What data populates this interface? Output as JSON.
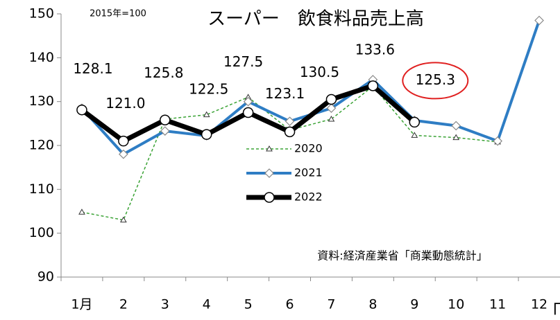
{
  "chart_data": {
    "type": "line",
    "title": "スーパー　飲食料品売上高",
    "subtitle": "2015年=100",
    "source": "資料:経済産業省「商業動態統計」",
    "corner_mark": "「",
    "categories": [
      "1月",
      "2",
      "3",
      "4",
      "5",
      "6",
      "7",
      "8",
      "9",
      "10",
      "11",
      "12"
    ],
    "ylim": [
      90,
      150
    ],
    "yticks": [
      90,
      100,
      110,
      120,
      130,
      140,
      150
    ],
    "legend": "center",
    "series": [
      {
        "name": "2020",
        "color": "#3aa335",
        "values": [
          104.8,
          103,
          126,
          127,
          131,
          123.5,
          126,
          133.5,
          122.3,
          121.8,
          120.8,
          null
        ]
      },
      {
        "name": "2021",
        "color": "#2e7dc4",
        "values": [
          128.5,
          118,
          123.3,
          122.2,
          130,
          125.5,
          128.5,
          135,
          125.7,
          124.5,
          121,
          148.5
        ]
      },
      {
        "name": "2022",
        "color": "#000000",
        "values": [
          128.1,
          121.0,
          125.8,
          122.5,
          127.5,
          123.1,
          130.5,
          133.6,
          125.3,
          null,
          null,
          null
        ],
        "value_labels": [
          "128.1",
          "121.0",
          "125.8",
          "122.5",
          "127.5",
          "123.1",
          "130.5",
          "133.6",
          "125.3",
          null,
          null,
          null
        ]
      }
    ]
  }
}
